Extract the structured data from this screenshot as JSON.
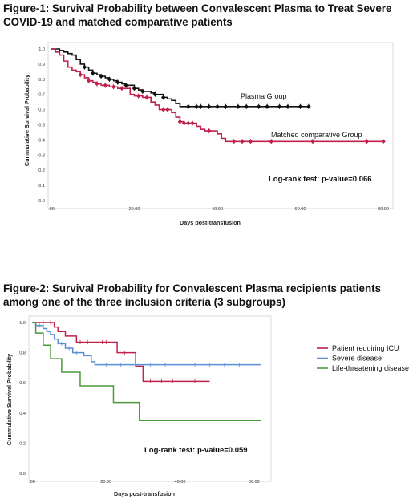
{
  "figure1": {
    "title": "Figure-1: Survival Probability between Convalescent Plasma to Treat Severe COVID-19 and matched comparative patients"
  },
  "figure2": {
    "title": "Figure-2: Survival Probability for Convalescent Plasma recipients patients among one of the three inclusion criteria (3 subgroups)"
  },
  "chart_data": [
    {
      "type": "line",
      "subtype": "kaplan-meier step",
      "xlabel": "Days post-transfusion",
      "ylabel": "Cummulative Survival Probability",
      "xlim": [
        0,
        80
      ],
      "ylim": [
        0,
        1.0
      ],
      "xticks": [
        ".00",
        "20.00",
        "40.00",
        "60.00",
        "80.00"
      ],
      "yticks": [
        "0.0",
        "0.1",
        "0.2",
        "0.3",
        "0.4",
        "0.5",
        "0.6",
        "0.7",
        "0.8",
        "0.9",
        "1.0"
      ],
      "annotation": "Log-rank test: p-value=0.066",
      "colors": {
        "plasma": "#111111",
        "comparative": "#c0204a"
      },
      "series": [
        {
          "name": "Plasma Group",
          "color": "#111111",
          "x": [
            0,
            2,
            3,
            4,
            5,
            6,
            7,
            8,
            9,
            10,
            11,
            12,
            13,
            14,
            15,
            16,
            17,
            18,
            19,
            20,
            21,
            22,
            23,
            24,
            25,
            26,
            27,
            28,
            29,
            30,
            31,
            33,
            62
          ],
          "y": [
            1.0,
            0.99,
            0.98,
            0.97,
            0.96,
            0.93,
            0.9,
            0.88,
            0.86,
            0.84,
            0.83,
            0.82,
            0.81,
            0.8,
            0.79,
            0.78,
            0.77,
            0.76,
            0.76,
            0.74,
            0.73,
            0.72,
            0.72,
            0.71,
            0.7,
            0.7,
            0.68,
            0.67,
            0.66,
            0.64,
            0.62,
            0.62,
            0.62
          ],
          "censored_x": [
            8,
            10,
            12,
            14,
            16,
            18,
            20,
            22,
            25,
            27,
            33,
            35,
            36,
            38,
            40,
            42,
            45,
            47,
            50,
            52,
            55,
            57,
            60,
            62
          ]
        },
        {
          "name": "Matched comparative Group",
          "color": "#c0204a",
          "x": [
            0,
            1,
            2,
            3,
            4,
            5,
            6,
            7,
            8,
            9,
            10,
            11,
            12,
            14,
            16,
            18,
            19,
            20,
            22,
            24,
            25,
            26,
            29,
            30,
            31,
            32,
            35,
            36,
            37,
            40,
            41,
            42,
            80
          ],
          "y": [
            1.0,
            0.98,
            0.96,
            0.92,
            0.88,
            0.86,
            0.85,
            0.83,
            0.81,
            0.79,
            0.78,
            0.77,
            0.76,
            0.75,
            0.74,
            0.74,
            0.7,
            0.69,
            0.68,
            0.65,
            0.63,
            0.6,
            0.58,
            0.55,
            0.52,
            0.51,
            0.49,
            0.47,
            0.46,
            0.44,
            0.41,
            0.39,
            0.39
          ],
          "censored_x": [
            7,
            9,
            11,
            13,
            15,
            17,
            21,
            23,
            27,
            28,
            31,
            32,
            33,
            34,
            38,
            44,
            46,
            48,
            53,
            63,
            76,
            80
          ]
        }
      ],
      "series_labels": [
        "Plasma Group",
        "Matched comparative Group"
      ]
    },
    {
      "type": "line",
      "subtype": "kaplan-meier step",
      "xlabel": "Days post-transfusion",
      "ylabel": "Cummulative Survival Probability",
      "xlim": [
        0,
        62
      ],
      "ylim": [
        0,
        1.0
      ],
      "xticks": [
        ".00",
        "20.00",
        "40.00",
        "60.00"
      ],
      "yticks": [
        "0.0",
        "0.2",
        "0.4",
        "0.6",
        "0.8",
        "1.0"
      ],
      "annotation": "Log-rank test: p-value=0.059",
      "legend_position": "right",
      "series": [
        {
          "name": "Patient requiring ICU",
          "color": "#c0204a",
          "x": [
            0,
            6,
            7,
            9,
            12,
            18,
            23,
            28,
            30,
            48
          ],
          "y": [
            1.0,
            0.97,
            0.94,
            0.91,
            0.87,
            0.87,
            0.8,
            0.71,
            0.61,
            0.61
          ],
          "censored_x": [
            3,
            5,
            13,
            15,
            17,
            19,
            20,
            25,
            32,
            35,
            38,
            40,
            44
          ]
        },
        {
          "name": "Severe disease",
          "color": "#5b8fd6",
          "x": [
            0,
            1,
            3,
            4,
            5,
            6,
            7,
            9,
            11,
            14,
            16,
            17,
            62
          ],
          "y": [
            1.0,
            0.98,
            0.96,
            0.94,
            0.92,
            0.89,
            0.86,
            0.83,
            0.8,
            0.78,
            0.74,
            0.72,
            0.72
          ],
          "censored_x": [
            2,
            8,
            10,
            12,
            20,
            24,
            28,
            32,
            36,
            40,
            44,
            48,
            52,
            56
          ]
        },
        {
          "name": "Life-threatening disease",
          "color": "#4a9a3a",
          "x": [
            0,
            1,
            3,
            5,
            8,
            13,
            22,
            29,
            62
          ],
          "y": [
            1.0,
            0.93,
            0.85,
            0.76,
            0.67,
            0.58,
            0.47,
            0.35,
            0.35
          ],
          "censored_x": []
        }
      ]
    }
  ]
}
